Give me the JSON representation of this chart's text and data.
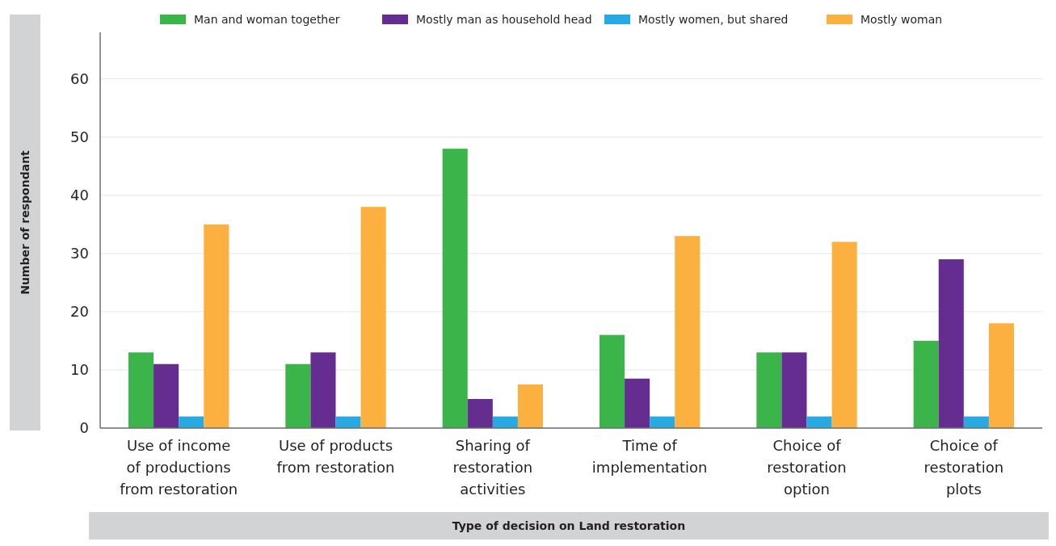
{
  "chart_data": {
    "type": "bar",
    "xlabel": "Type of decision on Land restoration",
    "ylabel": "Number of respondant",
    "categories": [
      "Use of income\nof productions\nfrom restoration",
      "Use of products\nfrom restoration",
      "Sharing of\nrestoration\nactivities",
      "Time of\nimplementation",
      "Choice of\nrestoration\noption",
      "Choice of\nrestoration\nplots"
    ],
    "series": [
      {
        "name": "Man and woman together",
        "color": "#3bb54a",
        "values": [
          13,
          11,
          48,
          16,
          13,
          15
        ]
      },
      {
        "name": "Mostly man as household head",
        "color": "#662d91",
        "values": [
          11,
          13,
          5,
          8.5,
          13,
          29
        ]
      },
      {
        "name": "Mostly women, but shared",
        "color": "#27aae1",
        "values": [
          2,
          2,
          2,
          2,
          2,
          2
        ]
      },
      {
        "name": "Mostly woman",
        "color": "#fbb040",
        "values": [
          35,
          38,
          7.5,
          33,
          32,
          18
        ]
      }
    ],
    "ylim": [
      0,
      68
    ],
    "yticks": [
      0,
      10,
      20,
      30,
      40,
      50,
      60
    ],
    "grid": "y",
    "legend": "top"
  }
}
